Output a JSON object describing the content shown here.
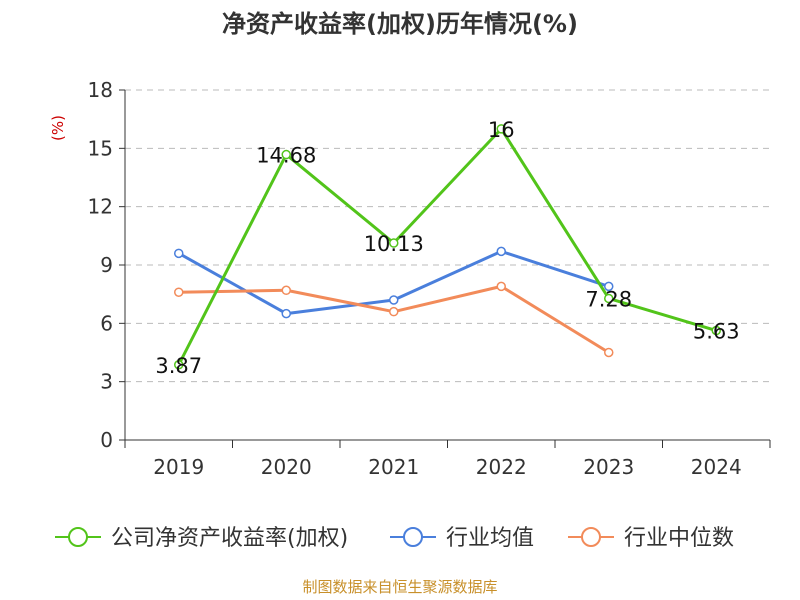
{
  "chart_data": {
    "type": "line",
    "title": "净资产收益率(加权)历年情况(%)",
    "ylabel": "(%)",
    "xlabel": "",
    "categories": [
      "2019",
      "2020",
      "2021",
      "2022",
      "2023",
      "2024"
    ],
    "ylim": [
      0,
      18
    ],
    "yticks": [
      0,
      3,
      6,
      9,
      12,
      15,
      18
    ],
    "grid": true,
    "legend_position": "bottom",
    "series": [
      {
        "name": "公司净资产收益率(加权)",
        "color": "#52c41a",
        "values": [
          3.87,
          14.68,
          10.13,
          16,
          7.28,
          5.63
        ],
        "labels": [
          "3.87",
          "14.68",
          "10.13",
          "16",
          "7.28",
          "5.63"
        ]
      },
      {
        "name": "行业均值",
        "color": "#4a7fdc",
        "values": [
          9.6,
          6.5,
          7.2,
          9.7,
          7.9,
          null
        ]
      },
      {
        "name": "行业中位数",
        "color": "#f28b5a",
        "values": [
          7.6,
          7.7,
          6.6,
          7.9,
          4.5,
          null
        ]
      }
    ],
    "source": "制图数据来自恒生聚源数据库"
  }
}
